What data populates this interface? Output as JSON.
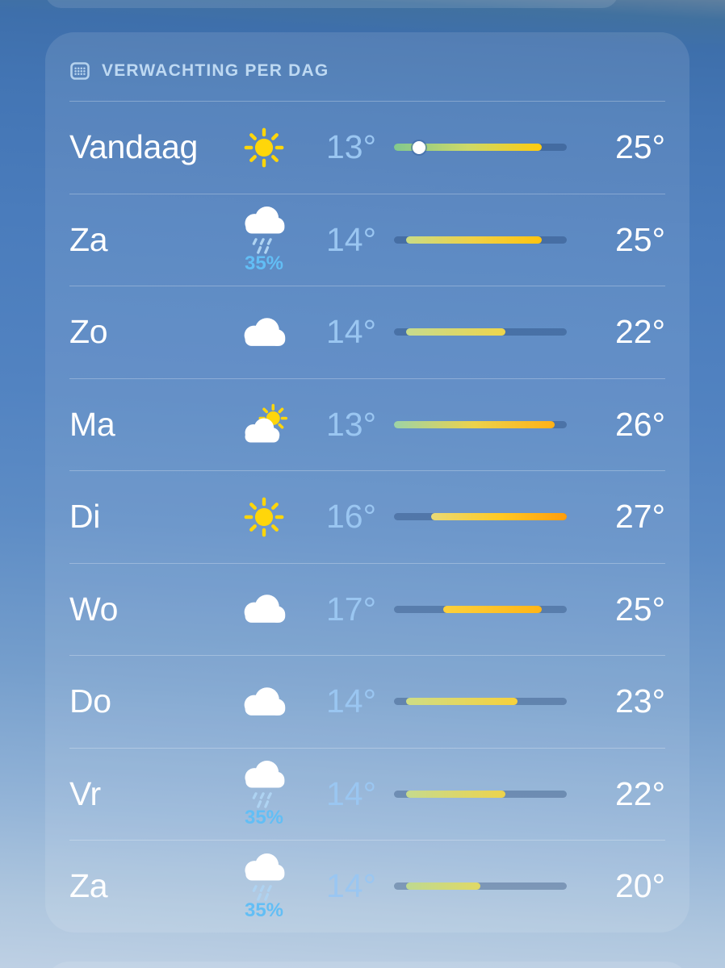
{
  "section": {
    "title": "VERWACHTING PER DAG",
    "icon": "calendar-icon"
  },
  "scale": {
    "min_temp": 13,
    "max_temp": 27
  },
  "colors": {
    "day_text": "#ffffff",
    "low_temp_text": "#9ac6f1",
    "high_temp_text": "#ffffff",
    "precip_text": "#62bef5",
    "section_title_text": "#bed9f2",
    "track": "rgba(23,53,98,0.32)",
    "dot": "#ffffff",
    "sun": "#ffd60a",
    "cloud": "#ffffff",
    "rain": "#aed3f2"
  },
  "days": [
    {
      "label": "Vandaag",
      "icon": "sun",
      "low_label": "13°",
      "high_label": "25°",
      "low": 13,
      "high": 25,
      "current": 15,
      "bar_colors": [
        "#82c98e",
        "#cdd968",
        "#ffcb0e"
      ]
    },
    {
      "label": "Za",
      "icon": "cloud-rain",
      "precip": "35%",
      "low_label": "14°",
      "high_label": "25°",
      "low": 14,
      "high": 25,
      "bar_colors": [
        "#c9dc86",
        "#f0d145",
        "#ffc40f"
      ]
    },
    {
      "label": "Zo",
      "icon": "cloud",
      "low_label": "14°",
      "high_label": "22°",
      "low": 14,
      "high": 22,
      "bar_colors": [
        "#c6db8e",
        "#eed54b"
      ]
    },
    {
      "label": "Ma",
      "icon": "cloud-sun",
      "low_label": "13°",
      "high_label": "26°",
      "low": 13,
      "high": 26,
      "bar_colors": [
        "#9dd3a6",
        "#ecd24b",
        "#ffb117"
      ]
    },
    {
      "label": "Di",
      "icon": "sun",
      "low_label": "16°",
      "high_label": "27°",
      "low": 16,
      "high": 27,
      "bar_colors": [
        "#e9da76",
        "#ffca25",
        "#ff9d0b"
      ]
    },
    {
      "label": "Wo",
      "icon": "cloud",
      "low_label": "17°",
      "high_label": "25°",
      "low": 17,
      "high": 25,
      "bar_colors": [
        "#fdd13c",
        "#ffb516"
      ]
    },
    {
      "label": "Do",
      "icon": "cloud",
      "low_label": "14°",
      "high_label": "23°",
      "low": 14,
      "high": 23,
      "bar_colors": [
        "#cedd86",
        "#f7d13c"
      ]
    },
    {
      "label": "Vr",
      "icon": "cloud-rain",
      "precip": "35%",
      "low_label": "14°",
      "high_label": "22°",
      "low": 14,
      "high": 22,
      "bar_colors": [
        "#c6da8e",
        "#edd34c"
      ]
    },
    {
      "label": "Za",
      "icon": "cloud-rain",
      "precip": "35%",
      "low_label": "14°",
      "high_label": "20°",
      "low": 14,
      "high": 20,
      "bar_colors": [
        "#bed991",
        "#e0d965"
      ]
    }
  ]
}
